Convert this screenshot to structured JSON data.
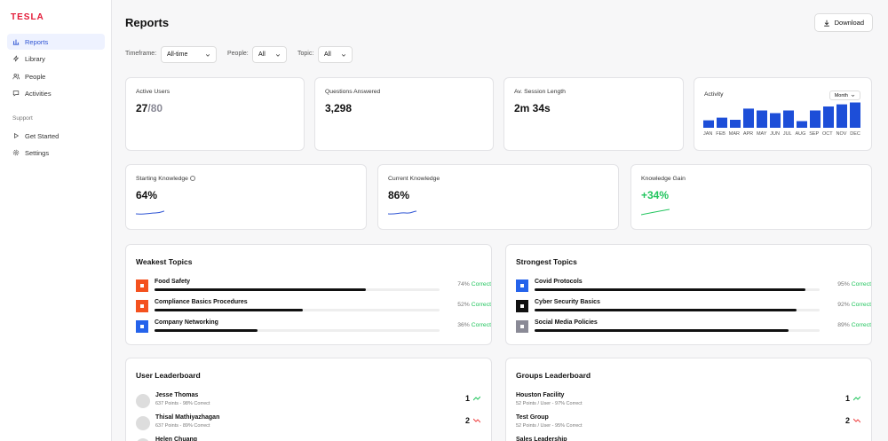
{
  "brand": "TESLA",
  "nav": {
    "items": [
      {
        "label": "Reports",
        "icon": "bar-chart-icon"
      },
      {
        "label": "Library",
        "icon": "lightning-icon"
      },
      {
        "label": "People",
        "icon": "users-icon"
      },
      {
        "label": "Activities",
        "icon": "chat-icon"
      }
    ],
    "support_label": "Support",
    "support_items": [
      {
        "label": "Get Started",
        "icon": "play-icon"
      },
      {
        "label": "Settings",
        "icon": "gear-icon"
      }
    ]
  },
  "header": {
    "title": "Reports",
    "download_label": "Download"
  },
  "filters": {
    "timeframe_label": "Timeframe:",
    "timeframe_value": "All-time",
    "people_label": "People:",
    "people_value": "All",
    "topic_label": "Topic:",
    "topic_value": "All"
  },
  "stats": {
    "active_users_label": "Active Users",
    "active_users_value": "27",
    "active_users_total": "/80",
    "questions_label": "Questions Answered",
    "questions_value": "3,298",
    "session_label": "Av. Session Length",
    "session_value": "2m 34s"
  },
  "activity": {
    "label": "Activity",
    "period": "Month",
    "months": [
      "JAN",
      "FEB",
      "MAR",
      "APR",
      "MAY",
      "JUN",
      "JUL",
      "AUG",
      "SEP",
      "OCT",
      "NOV",
      "DEC"
    ],
    "values": [
      0.28,
      0.38,
      0.3,
      0.72,
      0.65,
      0.55,
      0.65,
      0.25,
      0.65,
      0.8,
      0.88,
      0.95
    ],
    "bar_color": "#1d4ed8"
  },
  "knowledge": {
    "starting_label": "Starting Knowledge",
    "starting_value": "64%",
    "current_label": "Current Knowledge",
    "current_value": "86%",
    "gain_label": "Knowledge Gain",
    "gain_value": "+34%"
  },
  "weakest": {
    "title": "Weakest Topics",
    "correct_label": "Correct",
    "items": [
      {
        "name": "Food Safety",
        "pct": "74%",
        "value": 0.74,
        "color": "#f4511e"
      },
      {
        "name": "Compliance Basics Procedures",
        "pct": "52%",
        "value": 0.52,
        "color": "#f4511e"
      },
      {
        "name": "Company Networking",
        "pct": "36%",
        "value": 0.36,
        "color": "#2563eb"
      }
    ]
  },
  "strongest": {
    "title": "Strongest Topics",
    "correct_label": "Correct",
    "items": [
      {
        "name": "Covid Protocols",
        "pct": "95%",
        "value": 0.95,
        "color": "#2563eb"
      },
      {
        "name": "Cyber Security Basics",
        "pct": "92%",
        "value": 0.92,
        "color": "#111111"
      },
      {
        "name": "Social Media Policies",
        "pct": "89%",
        "value": 0.89,
        "color": "#8a8a96"
      }
    ]
  },
  "user_leaderboard": {
    "title": "User Leaderboard",
    "rows": [
      {
        "name": "Jesse Thomas",
        "meta": "637 Points - 98% Correct",
        "rank": "1",
        "trend": "up"
      },
      {
        "name": "Thisal Mathiyazhagan",
        "meta": "637 Points - 89% Correct",
        "rank": "2",
        "trend": "down"
      },
      {
        "name": "Helen Chuang",
        "meta": "",
        "rank": "",
        "trend": ""
      }
    ]
  },
  "group_leaderboard": {
    "title": "Groups Leaderboard",
    "rows": [
      {
        "name": "Houston Facility",
        "meta": "52 Points / User - 97% Correct",
        "rank": "1",
        "trend": "up"
      },
      {
        "name": "Test Group",
        "meta": "52 Points / User - 95% Correct",
        "rank": "2",
        "trend": "down"
      },
      {
        "name": "Sales Leadership",
        "meta": "",
        "rank": "",
        "trend": ""
      }
    ]
  }
}
